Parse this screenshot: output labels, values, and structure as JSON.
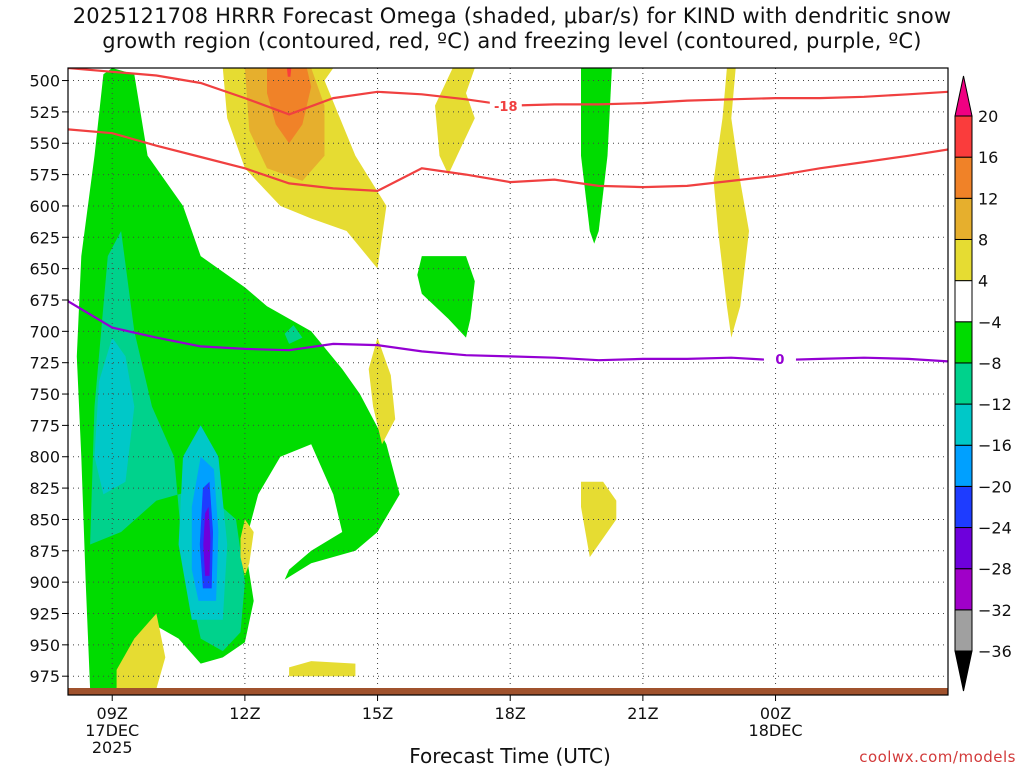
{
  "title_line1": "2025121708 HRRR Forecast Omega (shaded, μbar/s) for KIND with dendritic snow",
  "title_line2": "growth region (contoured, red, ºC) and freezing level (contoured, purple, ºC)",
  "credit": "coolwx.com/models",
  "chart_data": {
    "type": "heatmap",
    "title": "2025121708 HRRR Forecast Omega (shaded, μbar/s) for KIND with dendritic snow growth region (contoured, red, ºC) and freezing level (contoured, purple, ºC)",
    "xlabel": "Forecast Time (UTC)",
    "ylabel": "",
    "x_unit": "forecast hour from 08Z 17DEC2025",
    "xlim": [
      8,
      27.9
    ],
    "ylim": [
      990,
      490
    ],
    "y_ticks": [
      500,
      525,
      550,
      575,
      600,
      625,
      650,
      675,
      700,
      725,
      750,
      775,
      800,
      825,
      850,
      875,
      900,
      925,
      950,
      975
    ],
    "x_ticks": [
      {
        "hour": 9,
        "lines": [
          "09Z",
          "17DEC",
          "2025"
        ]
      },
      {
        "hour": 12,
        "lines": [
          "12Z"
        ]
      },
      {
        "hour": 15,
        "lines": [
          "15Z"
        ]
      },
      {
        "hour": 18,
        "lines": [
          "18Z"
        ]
      },
      {
        "hour": 21,
        "lines": [
          "21Z"
        ]
      },
      {
        "hour": 24,
        "lines": [
          "00Z",
          "18DEC"
        ]
      }
    ],
    "grid": true,
    "colorbar": {
      "levels": [
        -36,
        -32,
        -28,
        -24,
        -20,
        -16,
        -12,
        -8,
        -4,
        4,
        8,
        12,
        16,
        20
      ],
      "colors": [
        "#000000",
        "#a0a0a0",
        "#a000c8",
        "#6e00dc",
        "#1e3cff",
        "#00a0ff",
        "#00c8c8",
        "#00d28c",
        "#00dc00",
        "#ffffff",
        "#e6dc32",
        "#e6af2d",
        "#f08228",
        "#fa3c3c",
        "#f00082"
      ]
    },
    "contours": [
      {
        "name": "-18",
        "color": "#f04040",
        "label": "-18",
        "label_at": [
          17.9,
          521
        ],
        "points": [
          [
            8.0,
            490
          ],
          [
            9.0,
            493
          ],
          [
            10.0,
            496
          ],
          [
            11.0,
            502
          ],
          [
            12.0,
            514
          ],
          [
            13.0,
            527
          ],
          [
            14.0,
            514
          ],
          [
            15.0,
            509
          ],
          [
            16.0,
            511
          ],
          [
            17.0,
            515
          ],
          [
            18.0,
            520
          ],
          [
            19.0,
            519
          ],
          [
            20.0,
            519
          ],
          [
            21.0,
            518
          ],
          [
            22.0,
            516
          ],
          [
            23.0,
            515
          ],
          [
            24.0,
            514
          ],
          [
            25.0,
            514
          ],
          [
            26.0,
            513
          ],
          [
            27.0,
            511
          ],
          [
            27.9,
            509
          ]
        ]
      },
      {
        "name": "-12",
        "color": "#f04040",
        "points": [
          [
            8.0,
            539
          ],
          [
            9.0,
            542
          ],
          [
            10.0,
            552
          ],
          [
            11.0,
            561
          ],
          [
            12.0,
            570
          ],
          [
            13.0,
            582
          ],
          [
            14.0,
            586
          ],
          [
            15.0,
            588
          ],
          [
            16.0,
            570
          ],
          [
            17.0,
            575
          ],
          [
            18.0,
            581
          ],
          [
            19.0,
            579
          ],
          [
            20.0,
            584
          ],
          [
            21.0,
            585
          ],
          [
            22.0,
            584
          ],
          [
            23.0,
            580
          ],
          [
            24.0,
            576
          ],
          [
            25.0,
            570
          ],
          [
            26.0,
            565
          ],
          [
            27.0,
            560
          ],
          [
            27.9,
            555
          ]
        ]
      },
      {
        "name": "0",
        "color": "#9400d3",
        "label": "0",
        "label_at": [
          24.1,
          723
        ],
        "points": [
          [
            8.0,
            676
          ],
          [
            9.0,
            697
          ],
          [
            10.0,
            705
          ],
          [
            11.0,
            712
          ],
          [
            12.0,
            714
          ],
          [
            13.0,
            715
          ],
          [
            14.0,
            710
          ],
          [
            15.0,
            711
          ],
          [
            16.0,
            716
          ],
          [
            17.0,
            719
          ],
          [
            18.0,
            720
          ],
          [
            19.0,
            721
          ],
          [
            20.0,
            723
          ],
          [
            21.0,
            722
          ],
          [
            22.0,
            722
          ],
          [
            23.0,
            721
          ],
          [
            24.0,
            723
          ],
          [
            25.0,
            722
          ],
          [
            26.0,
            721
          ],
          [
            27.0,
            722
          ],
          [
            27.9,
            724
          ]
        ]
      }
    ],
    "regions": [
      {
        "value": "-8 to -4",
        "color": "#00dc00",
        "points": [
          [
            8.5,
            985
          ],
          [
            9.2,
            990
          ],
          [
            9.5,
            975
          ],
          [
            10.0,
            935
          ],
          [
            10.5,
            945
          ],
          [
            11.0,
            965
          ],
          [
            11.5,
            960
          ],
          [
            12.0,
            948
          ],
          [
            12.2,
            915
          ],
          [
            12.0,
            870
          ],
          [
            12.3,
            830
          ],
          [
            12.8,
            800
          ],
          [
            13.5,
            790
          ],
          [
            14.0,
            830
          ],
          [
            14.2,
            860
          ],
          [
            13.5,
            875
          ],
          [
            13.0,
            890
          ],
          [
            12.9,
            898
          ],
          [
            13.5,
            885
          ],
          [
            14.5,
            875
          ],
          [
            15.0,
            860
          ],
          [
            15.5,
            830
          ],
          [
            15.2,
            790
          ],
          [
            14.6,
            750
          ],
          [
            14.2,
            730
          ],
          [
            13.5,
            700
          ],
          [
            12.5,
            680
          ],
          [
            12.0,
            665
          ],
          [
            11.0,
            640
          ],
          [
            10.6,
            600
          ],
          [
            9.8,
            560
          ],
          [
            9.5,
            495
          ],
          [
            9.0,
            490
          ],
          [
            8.8,
            495
          ],
          [
            8.6,
            560
          ],
          [
            8.3,
            640
          ],
          [
            8.2,
            720
          ],
          [
            8.3,
            800
          ],
          [
            8.4,
            900
          ]
        ]
      },
      {
        "value": "-8 to -4",
        "color": "#00dc00",
        "points": [
          [
            19.6,
            490
          ],
          [
            20.3,
            490
          ],
          [
            20.2,
            560
          ],
          [
            20.0,
            620
          ],
          [
            19.9,
            630
          ],
          [
            19.8,
            620
          ],
          [
            19.6,
            560
          ]
        ]
      },
      {
        "value": "-8 to -4",
        "color": "#00dc00",
        "points": [
          [
            16.0,
            640
          ],
          [
            17.0,
            640
          ],
          [
            17.2,
            660
          ],
          [
            17.1,
            690
          ],
          [
            17.0,
            705
          ],
          [
            16.6,
            690
          ],
          [
            16.0,
            670
          ],
          [
            15.9,
            655
          ]
        ]
      },
      {
        "value": "-12 to -8",
        "color": "#00d28c",
        "points": [
          [
            8.5,
            870
          ],
          [
            9.2,
            860
          ],
          [
            10.0,
            835
          ],
          [
            11.0,
            825
          ],
          [
            11.8,
            850
          ],
          [
            12.0,
            900
          ],
          [
            11.9,
            940
          ],
          [
            11.5,
            955
          ],
          [
            11.0,
            945
          ],
          [
            10.6,
            880
          ],
          [
            10.4,
            800
          ],
          [
            9.9,
            760
          ],
          [
            9.5,
            700
          ],
          [
            9.2,
            620
          ],
          [
            8.9,
            640
          ],
          [
            8.6,
            760
          ]
        ]
      },
      {
        "value": "-12 to -8",
        "color": "#00d28c",
        "points": [
          [
            13.1,
            695
          ],
          [
            13.3,
            705
          ],
          [
            13.0,
            710
          ],
          [
            12.9,
            702
          ]
        ]
      },
      {
        "value": "-16 to -12",
        "color": "#00c8c8",
        "points": [
          [
            8.8,
            830
          ],
          [
            9.3,
            820
          ],
          [
            9.5,
            760
          ],
          [
            9.3,
            720
          ],
          [
            9.0,
            705
          ],
          [
            8.7,
            740
          ],
          [
            8.6,
            800
          ]
        ]
      },
      {
        "value": "-16 to -12",
        "color": "#00c8c8",
        "points": [
          [
            10.8,
            930
          ],
          [
            11.5,
            930
          ],
          [
            11.6,
            870
          ],
          [
            11.4,
            800
          ],
          [
            11.0,
            775
          ],
          [
            10.6,
            800
          ],
          [
            10.5,
            870
          ]
        ]
      },
      {
        "value": "-20 to -16",
        "color": "#00a0ff",
        "points": [
          [
            10.95,
            915
          ],
          [
            11.35,
            915
          ],
          [
            11.4,
            860
          ],
          [
            11.3,
            810
          ],
          [
            11.0,
            800
          ],
          [
            10.8,
            840
          ],
          [
            10.8,
            890
          ]
        ]
      },
      {
        "value": "-24 to -20",
        "color": "#1e3cff",
        "points": [
          [
            11.05,
            905
          ],
          [
            11.25,
            905
          ],
          [
            11.28,
            860
          ],
          [
            11.2,
            820
          ],
          [
            11.05,
            825
          ],
          [
            10.98,
            870
          ]
        ]
      },
      {
        "value": "-28 to -24",
        "color": "#6e00dc",
        "points": [
          [
            11.1,
            895
          ],
          [
            11.2,
            895
          ],
          [
            11.22,
            865
          ],
          [
            11.18,
            840
          ],
          [
            11.1,
            845
          ],
          [
            11.06,
            870
          ]
        ]
      },
      {
        "value": "4 to 8",
        "color": "#e6dc32",
        "points": [
          [
            11.5,
            490
          ],
          [
            14.0,
            490
          ],
          [
            13.8,
            500
          ],
          [
            14.5,
            560
          ],
          [
            15.2,
            600
          ],
          [
            15.0,
            650
          ],
          [
            14.3,
            620
          ],
          [
            13.5,
            610
          ],
          [
            12.8,
            600
          ],
          [
            12.0,
            570
          ],
          [
            11.6,
            530
          ]
        ]
      },
      {
        "value": "4 to 8",
        "color": "#e6dc32",
        "points": [
          [
            16.7,
            490
          ],
          [
            17.2,
            490
          ],
          [
            17.0,
            510
          ],
          [
            17.2,
            530
          ],
          [
            16.8,
            560
          ],
          [
            16.6,
            575
          ],
          [
            16.4,
            560
          ],
          [
            16.3,
            520
          ]
        ]
      },
      {
        "value": "4 to 8",
        "color": "#e6dc32",
        "points": [
          [
            22.9,
            490
          ],
          [
            23.1,
            490
          ],
          [
            23.0,
            530
          ],
          [
            23.2,
            580
          ],
          [
            23.4,
            620
          ],
          [
            23.2,
            680
          ],
          [
            23.0,
            705
          ],
          [
            22.9,
            680
          ],
          [
            22.7,
            620
          ],
          [
            22.6,
            580
          ],
          [
            22.8,
            530
          ]
        ]
      },
      {
        "value": "4 to 8",
        "color": "#e6dc32",
        "points": [
          [
            15.0,
            705
          ],
          [
            15.3,
            735
          ],
          [
            15.4,
            770
          ],
          [
            15.1,
            790
          ],
          [
            14.9,
            760
          ],
          [
            14.8,
            730
          ]
        ]
      },
      {
        "value": "4 to 8",
        "color": "#e6dc32",
        "points": [
          [
            19.6,
            820
          ],
          [
            20.1,
            820
          ],
          [
            20.4,
            835
          ],
          [
            20.4,
            850
          ],
          [
            20.0,
            870
          ],
          [
            19.8,
            880
          ],
          [
            19.7,
            860
          ],
          [
            19.6,
            840
          ]
        ]
      },
      {
        "value": "4 to 8",
        "color": "#e6dc32",
        "points": [
          [
            9.1,
            985
          ],
          [
            10.0,
            985
          ],
          [
            10.2,
            960
          ],
          [
            10.0,
            925
          ],
          [
            9.5,
            945
          ],
          [
            9.1,
            970
          ]
        ]
      },
      {
        "value": "4 to 8",
        "color": "#e6dc32",
        "points": [
          [
            12.0,
            850
          ],
          [
            12.2,
            860
          ],
          [
            12.1,
            885
          ],
          [
            12.0,
            895
          ],
          [
            11.9,
            880
          ],
          [
            11.9,
            865
          ]
        ]
      },
      {
        "value": "4 to 8",
        "color": "#e6dc32",
        "points": [
          [
            13.0,
            975
          ],
          [
            14.5,
            975
          ],
          [
            14.5,
            965
          ],
          [
            13.5,
            963
          ],
          [
            13.0,
            968
          ]
        ]
      },
      {
        "value": "8 to 12",
        "color": "#e6af2d",
        "points": [
          [
            12.0,
            490
          ],
          [
            13.5,
            490
          ],
          [
            13.8,
            520
          ],
          [
            13.8,
            560
          ],
          [
            13.3,
            580
          ],
          [
            12.5,
            570
          ],
          [
            12.1,
            540
          ]
        ]
      },
      {
        "value": "12 to 16",
        "color": "#f08228",
        "points": [
          [
            12.5,
            490
          ],
          [
            13.4,
            490
          ],
          [
            13.5,
            505
          ],
          [
            13.3,
            535
          ],
          [
            13.0,
            550
          ],
          [
            12.7,
            535
          ],
          [
            12.5,
            510
          ]
        ]
      },
      {
        "value": "16 to 20",
        "color": "#fa3c3c",
        "points": [
          [
            12.95,
            490
          ],
          [
            13.05,
            490
          ],
          [
            13.03,
            497
          ],
          [
            12.97,
            497
          ]
        ]
      }
    ],
    "ground": {
      "color": "#a0522d",
      "from_hpa": 990
    }
  }
}
